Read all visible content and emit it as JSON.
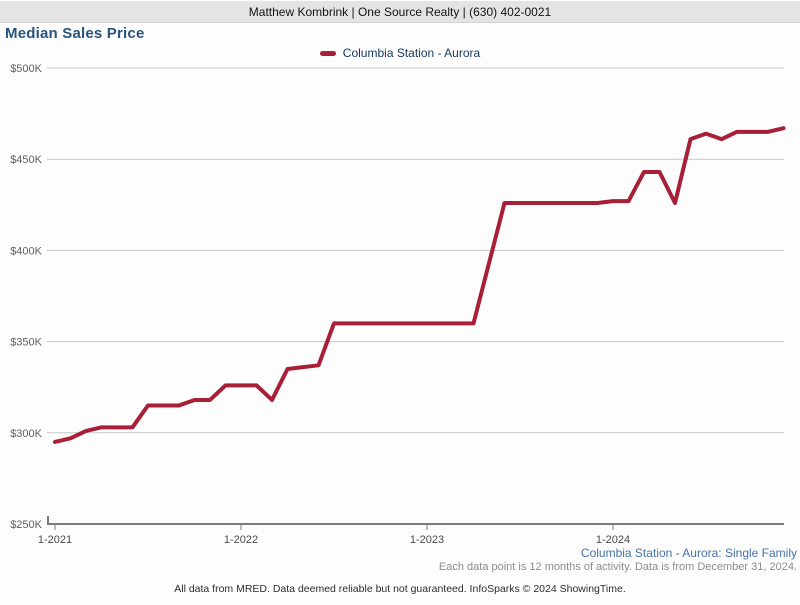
{
  "header": {
    "agent_info": "Matthew Kombrink | One Source Realty | (630) 402-0021"
  },
  "title": "Median Sales Price",
  "legend": {
    "label": "Columbia Station - Aurora"
  },
  "footnotes": {
    "series": "Columbia Station - Aurora: Single Family",
    "data_note": "Each data point is 12 months of activity. Data is from December 31, 2024.",
    "disclaimer": "All data from MRED. Data deemed reliable but not guaranteed. InfoSparks © 2024 ShowingTime."
  },
  "colors": {
    "series_red": "#a81f38",
    "title_blue": "#27547e",
    "legend_navy": "#17375e",
    "note_blue": "#4473a7",
    "topbar_gray": "#e4e4e4",
    "gridline_gray": "#c6c6c6",
    "axis_gray": "#7a7a7a"
  },
  "chart_data": {
    "type": "line",
    "title": "Median Sales Price",
    "legend_position": "top-center",
    "grid": "horizontal",
    "x_unit": "month",
    "x_start": "1-2021",
    "x_end": "12-2024",
    "points_note": "rolling 12-month median, one point per month",
    "x_ticks": [
      {
        "label": "1-2021",
        "month_index": 0
      },
      {
        "label": "1-2022",
        "month_index": 12
      },
      {
        "label": "1-2023",
        "month_index": 24
      },
      {
        "label": "1-2024",
        "month_index": 36
      }
    ],
    "y_axis": {
      "unit": "USD thousands",
      "min": 250,
      "max": 500,
      "ticks": [
        {
          "label": "$250K",
          "value": 250
        },
        {
          "label": "$300K",
          "value": 300
        },
        {
          "label": "$350K",
          "value": 350
        },
        {
          "label": "$400K",
          "value": 400
        },
        {
          "label": "$450K",
          "value": 450
        },
        {
          "label": "$500K",
          "value": 500
        }
      ]
    },
    "series": [
      {
        "name": "Columbia Station - Aurora",
        "color": "#a81f38",
        "unit": "USD thousands",
        "values": [
          295,
          297,
          301,
          303,
          303,
          303,
          315,
          315,
          315,
          318,
          318,
          326,
          326,
          326,
          318,
          335,
          336,
          337,
          360,
          360,
          360,
          360,
          360,
          360,
          360,
          360,
          360,
          360,
          393,
          426,
          426,
          426,
          426,
          426,
          426,
          426,
          427,
          427,
          443,
          443,
          426,
          461,
          464,
          461,
          465,
          465,
          465,
          467
        ]
      }
    ]
  }
}
